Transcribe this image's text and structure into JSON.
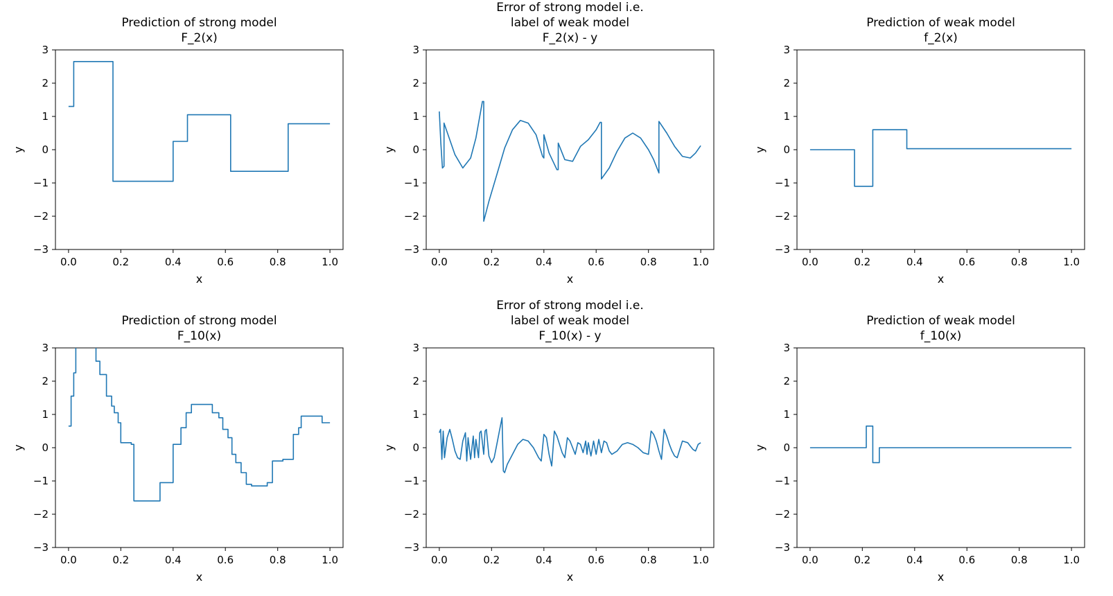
{
  "figure": {
    "background": "#ffffff",
    "line_color": "#1f77b4",
    "text_color": "#000000"
  },
  "chart_data": [
    {
      "type": "line",
      "title_lines": [
        "Prediction of strong model",
        "F_2(x)"
      ],
      "xlabel": "x",
      "ylabel": "y",
      "xlim": [
        -0.05,
        1.05
      ],
      "ylim": [
        -3,
        3
      ],
      "xticks": [
        0,
        0.2,
        0.4,
        0.6,
        0.8,
        1.0
      ],
      "xtick_labels": [
        "0.0",
        "0.2",
        "0.4",
        "0.6",
        "0.8",
        "1.0"
      ],
      "yticks": [
        -3,
        -2,
        -1,
        0,
        1,
        2,
        3
      ],
      "ytick_labels": [
        "−3",
        "−2",
        "−1",
        "0",
        "1",
        "2",
        "3"
      ],
      "grid": false,
      "legend": null,
      "x": [
        0,
        0.02,
        0.02,
        0.17,
        0.17,
        0.4,
        0.4,
        0.455,
        0.455,
        0.62,
        0.62,
        0.84,
        0.84,
        1.0
      ],
      "y": [
        1.3,
        1.3,
        2.65,
        2.65,
        -0.95,
        -0.95,
        0.25,
        0.25,
        1.05,
        1.05,
        -0.65,
        -0.65,
        0.78,
        0.78
      ]
    },
    {
      "type": "line",
      "title_lines": [
        "Error of strong model i.e.",
        "label of weak model",
        "F_2(x) - y"
      ],
      "xlabel": "x",
      "ylabel": "y",
      "xlim": [
        -0.05,
        1.05
      ],
      "ylim": [
        -3,
        3
      ],
      "xticks": [
        0,
        0.2,
        0.4,
        0.6,
        0.8,
        1.0
      ],
      "xtick_labels": [
        "0.0",
        "0.2",
        "0.4",
        "0.6",
        "0.8",
        "1.0"
      ],
      "yticks": [
        -3,
        -2,
        -1,
        0,
        1,
        2,
        3
      ],
      "ytick_labels": [
        "−3",
        "−2",
        "−1",
        "0",
        "1",
        "2",
        "3"
      ],
      "grid": false,
      "legend": null,
      "x": [
        0.0,
        0.006,
        0.012,
        0.018,
        0.018,
        0.04,
        0.06,
        0.09,
        0.12,
        0.14,
        0.165,
        0.17,
        0.17,
        0.19,
        0.22,
        0.25,
        0.28,
        0.31,
        0.34,
        0.37,
        0.395,
        0.4,
        0.4,
        0.42,
        0.45,
        0.455,
        0.455,
        0.48,
        0.51,
        0.54,
        0.57,
        0.6,
        0.615,
        0.62,
        0.62,
        0.65,
        0.68,
        0.71,
        0.74,
        0.77,
        0.8,
        0.82,
        0.835,
        0.84,
        0.84,
        0.87,
        0.9,
        0.93,
        0.96,
        0.98,
        1.0
      ],
      "y": [
        1.15,
        0.2,
        -0.55,
        -0.5,
        0.8,
        0.3,
        -0.15,
        -0.55,
        -0.25,
        0.35,
        1.45,
        1.45,
        -2.15,
        -1.55,
        -0.75,
        0.05,
        0.6,
        0.88,
        0.8,
        0.45,
        -0.2,
        -0.25,
        0.45,
        -0.1,
        -0.6,
        -0.6,
        0.2,
        -0.3,
        -0.35,
        0.1,
        0.3,
        0.6,
        0.82,
        0.82,
        -0.88,
        -0.55,
        -0.05,
        0.35,
        0.5,
        0.35,
        0.0,
        -0.3,
        -0.6,
        -0.7,
        0.85,
        0.5,
        0.1,
        -0.2,
        -0.25,
        -0.1,
        0.12
      ]
    },
    {
      "type": "line",
      "title_lines": [
        "Prediction of weak model",
        "f_2(x)"
      ],
      "xlabel": "x",
      "ylabel": "y",
      "xlim": [
        -0.05,
        1.05
      ],
      "ylim": [
        -3,
        3
      ],
      "xticks": [
        0,
        0.2,
        0.4,
        0.6,
        0.8,
        1.0
      ],
      "xtick_labels": [
        "0.0",
        "0.2",
        "0.4",
        "0.6",
        "0.8",
        "1.0"
      ],
      "yticks": [
        -3,
        -2,
        -1,
        0,
        1,
        2,
        3
      ],
      "ytick_labels": [
        "−3",
        "−2",
        "−1",
        "0",
        "1",
        "2",
        "3"
      ],
      "grid": false,
      "legend": null,
      "x": [
        0,
        0.17,
        0.17,
        0.24,
        0.24,
        0.37,
        0.37,
        1.0
      ],
      "y": [
        0,
        0,
        -1.1,
        -1.1,
        0.6,
        0.6,
        0.03,
        0.03
      ]
    },
    {
      "type": "line",
      "title_lines": [
        "Prediction of strong model",
        "F_10(x)"
      ],
      "xlabel": "x",
      "ylabel": "y",
      "xlim": [
        -0.05,
        1.05
      ],
      "ylim": [
        -3,
        3
      ],
      "xticks": [
        0,
        0.2,
        0.4,
        0.6,
        0.8,
        1.0
      ],
      "xtick_labels": [
        "0.0",
        "0.2",
        "0.4",
        "0.6",
        "0.8",
        "1.0"
      ],
      "yticks": [
        -3,
        -2,
        -1,
        0,
        1,
        2,
        3
      ],
      "ytick_labels": [
        "−3",
        "−2",
        "−1",
        "0",
        "1",
        "2",
        "3"
      ],
      "grid": false,
      "legend": null,
      "x": [
        0,
        0.01,
        0.01,
        0.02,
        0.02,
        0.028,
        0.028,
        0.105,
        0.105,
        0.12,
        0.12,
        0.145,
        0.145,
        0.165,
        0.165,
        0.175,
        0.175,
        0.19,
        0.19,
        0.2,
        0.2,
        0.24,
        0.24,
        0.25,
        0.25,
        0.35,
        0.35,
        0.4,
        0.4,
        0.43,
        0.43,
        0.45,
        0.45,
        0.47,
        0.47,
        0.55,
        0.55,
        0.575,
        0.575,
        0.59,
        0.59,
        0.61,
        0.61,
        0.625,
        0.625,
        0.64,
        0.64,
        0.66,
        0.66,
        0.68,
        0.68,
        0.7,
        0.7,
        0.76,
        0.76,
        0.78,
        0.78,
        0.82,
        0.82,
        0.86,
        0.86,
        0.88,
        0.88,
        0.89,
        0.89,
        0.97,
        0.97,
        1.0
      ],
      "y": [
        0.65,
        0.65,
        1.55,
        1.55,
        2.25,
        2.25,
        3.4,
        3.4,
        2.6,
        2.6,
        2.2,
        2.2,
        1.55,
        1.55,
        1.25,
        1.25,
        1.05,
        1.05,
        0.75,
        0.75,
        0.15,
        0.15,
        0.1,
        0.1,
        -1.6,
        -1.6,
        -1.05,
        -1.05,
        0.1,
        0.1,
        0.6,
        0.6,
        1.05,
        1.05,
        1.3,
        1.3,
        1.05,
        1.05,
        0.9,
        0.9,
        0.55,
        0.55,
        0.3,
        0.3,
        -0.2,
        -0.2,
        -0.45,
        -0.45,
        -0.75,
        -0.75,
        -1.1,
        -1.1,
        -1.15,
        -1.15,
        -1.05,
        -1.05,
        -0.4,
        -0.4,
        -0.35,
        -0.35,
        0.4,
        0.4,
        0.6,
        0.6,
        0.95,
        0.95,
        0.75,
        0.75
      ]
    },
    {
      "type": "line",
      "title_lines": [
        "Error of strong model i.e.",
        "label of weak model",
        "F_10(x) - y"
      ],
      "xlabel": "x",
      "ylabel": "y",
      "xlim": [
        -0.05,
        1.05
      ],
      "ylim": [
        -3,
        3
      ],
      "xticks": [
        0,
        0.2,
        0.4,
        0.6,
        0.8,
        1.0
      ],
      "xtick_labels": [
        "0.0",
        "0.2",
        "0.4",
        "0.6",
        "0.8",
        "1.0"
      ],
      "yticks": [
        -3,
        -2,
        -1,
        0,
        1,
        2,
        3
      ],
      "ytick_labels": [
        "−3",
        "−2",
        "−1",
        "0",
        "1",
        "2",
        "3"
      ],
      "grid": false,
      "legend": null,
      "x": [
        0,
        0.005,
        0.01,
        0.015,
        0.02,
        0.03,
        0.04,
        0.05,
        0.06,
        0.07,
        0.08,
        0.09,
        0.1,
        0.105,
        0.11,
        0.12,
        0.13,
        0.135,
        0.14,
        0.15,
        0.155,
        0.16,
        0.17,
        0.175,
        0.18,
        0.19,
        0.2,
        0.21,
        0.22,
        0.23,
        0.24,
        0.245,
        0.25,
        0.26,
        0.28,
        0.3,
        0.32,
        0.34,
        0.36,
        0.38,
        0.39,
        0.4,
        0.41,
        0.42,
        0.43,
        0.44,
        0.45,
        0.46,
        0.47,
        0.48,
        0.49,
        0.5,
        0.51,
        0.52,
        0.53,
        0.54,
        0.55,
        0.56,
        0.565,
        0.57,
        0.58,
        0.59,
        0.6,
        0.61,
        0.62,
        0.63,
        0.64,
        0.65,
        0.66,
        0.68,
        0.7,
        0.72,
        0.74,
        0.76,
        0.78,
        0.8,
        0.81,
        0.82,
        0.83,
        0.84,
        0.85,
        0.86,
        0.87,
        0.88,
        0.89,
        0.9,
        0.91,
        0.93,
        0.95,
        0.96,
        0.97,
        0.98,
        0.99,
        1.0
      ],
      "y": [
        0.45,
        0.55,
        -0.35,
        0.5,
        -0.3,
        0.3,
        0.55,
        0.25,
        -0.1,
        -0.3,
        -0.35,
        0.2,
        0.45,
        -0.4,
        0.3,
        -0.35,
        0.35,
        -0.3,
        0.25,
        -0.3,
        0.45,
        0.5,
        -0.2,
        0.5,
        0.55,
        -0.25,
        -0.45,
        -0.3,
        0.1,
        0.5,
        0.9,
        -0.7,
        -0.75,
        -0.5,
        -0.2,
        0.1,
        0.25,
        0.2,
        0.0,
        -0.3,
        -0.4,
        0.4,
        0.3,
        -0.2,
        -0.55,
        0.5,
        0.35,
        0.1,
        -0.15,
        -0.3,
        0.3,
        0.2,
        0.0,
        -0.2,
        0.15,
        0.1,
        -0.15,
        0.2,
        -0.2,
        0.15,
        -0.25,
        0.2,
        -0.2,
        0.25,
        -0.15,
        0.2,
        0.15,
        -0.1,
        -0.2,
        -0.1,
        0.1,
        0.15,
        0.1,
        0.0,
        -0.15,
        -0.2,
        0.5,
        0.4,
        0.2,
        -0.1,
        -0.35,
        0.55,
        0.35,
        0.1,
        -0.1,
        -0.25,
        -0.3,
        0.2,
        0.15,
        0.05,
        -0.05,
        -0.1,
        0.1,
        0.15
      ]
    },
    {
      "type": "line",
      "title_lines": [
        "Prediction of weak model",
        "f_10(x)"
      ],
      "xlabel": "x",
      "ylabel": "y",
      "xlim": [
        -0.05,
        1.05
      ],
      "ylim": [
        -3,
        3
      ],
      "xticks": [
        0,
        0.2,
        0.4,
        0.6,
        0.8,
        1.0
      ],
      "xtick_labels": [
        "0.0",
        "0.2",
        "0.4",
        "0.6",
        "0.8",
        "1.0"
      ],
      "yticks": [
        -3,
        -2,
        -1,
        0,
        1,
        2,
        3
      ],
      "ytick_labels": [
        "−3",
        "−2",
        "−1",
        "0",
        "1",
        "2",
        "3"
      ],
      "grid": false,
      "legend": null,
      "x": [
        0,
        0.215,
        0.215,
        0.24,
        0.24,
        0.265,
        0.265,
        1.0
      ],
      "y": [
        0,
        0,
        0.65,
        0.65,
        -0.45,
        -0.45,
        0,
        0
      ]
    }
  ]
}
